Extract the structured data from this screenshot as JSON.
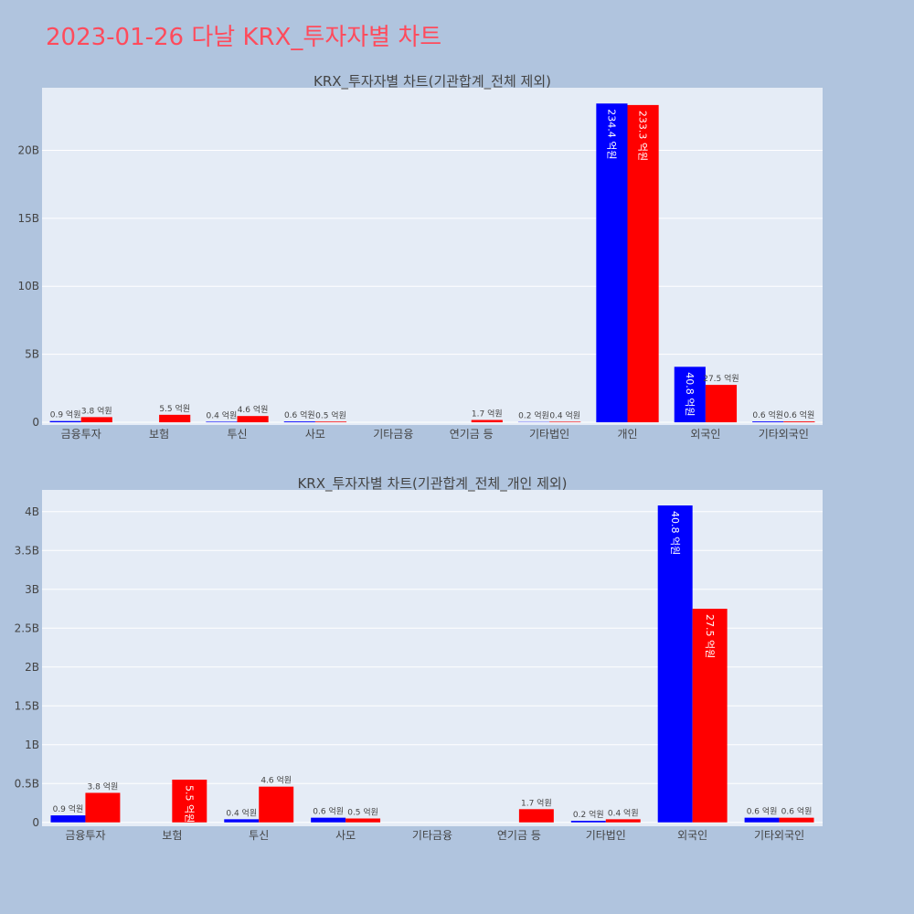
{
  "title": "2023-01-26 다날 KRX_투자자별 차트",
  "colors": {
    "buy": "#0000ff",
    "sell": "#ff0000",
    "title": "#ff4b5c"
  },
  "chart_data": [
    {
      "type": "bar",
      "title": "KRX_투자자별 차트(기관합계_전체 제외)",
      "categories": [
        "금융투자",
        "보험",
        "투신",
        "사모",
        "기타금융",
        "연기금 등",
        "기타법인",
        "개인",
        "외국인",
        "기타외국인"
      ],
      "series": [
        {
          "color": "#0000ff",
          "values": [
            90000000,
            0,
            40000000,
            60000000,
            0,
            0,
            20000000,
            23440000000,
            4080000000,
            60000000
          ],
          "labels": [
            "0.9 억원",
            "",
            "0.4 억원",
            "0.6 억원",
            "",
            "",
            "0.2 억원",
            "234.4 억원",
            "40.8 억원",
            "0.6 억원"
          ]
        },
        {
          "color": "#ff0000",
          "values": [
            380000000,
            550000000,
            460000000,
            50000000,
            0,
            170000000,
            40000000,
            23330000000,
            2750000000,
            60000000
          ],
          "labels": [
            "3.8 억원",
            "5.5 억원",
            "4.6 억원",
            "0.5 억원",
            "",
            "1.7 억원",
            "0.4 억원",
            "233.3 억원",
            "27.5 억원",
            "0.6 억원"
          ]
        }
      ],
      "yticks": [
        0,
        5000000000,
        10000000000,
        15000000000,
        20000000000
      ],
      "yticklabels": [
        "0",
        "5B",
        "10B",
        "15B",
        "20B"
      ],
      "ylim": [
        -200000000,
        24600000000
      ],
      "grid": true
    },
    {
      "type": "bar",
      "title": "KRX_투자자별 차트(기관합계_전체_개인 제외)",
      "categories": [
        "금융투자",
        "보험",
        "투신",
        "사모",
        "기타금융",
        "연기금 등",
        "기타법인",
        "외국인",
        "기타외국인"
      ],
      "series": [
        {
          "color": "#0000ff",
          "values": [
            90000000,
            0,
            40000000,
            60000000,
            0,
            0,
            20000000,
            4080000000,
            60000000
          ],
          "labels": [
            "0.9 억원",
            "",
            "0.4 억원",
            "0.6 억원",
            "",
            "",
            "0.2 억원",
            "40.8 억원",
            "0.6 억원"
          ]
        },
        {
          "color": "#ff0000",
          "values": [
            380000000,
            550000000,
            460000000,
            50000000,
            0,
            170000000,
            40000000,
            2750000000,
            60000000
          ],
          "labels": [
            "3.8 억원",
            "5.5 억원",
            "4.6 억원",
            "0.5 억원",
            "",
            "1.7 억원",
            "0.4 억원",
            "27.5 억원",
            "0.6 억원"
          ]
        }
      ],
      "yticks": [
        0,
        500000000,
        1000000000,
        1500000000,
        2000000000,
        2500000000,
        3000000000,
        3500000000,
        4000000000
      ],
      "yticklabels": [
        "0",
        "0.5B",
        "1B",
        "1.5B",
        "2B",
        "2.5B",
        "3B",
        "3.5B",
        "4B"
      ],
      "ylim": [
        -50000000,
        4280000000
      ],
      "grid": true
    }
  ]
}
